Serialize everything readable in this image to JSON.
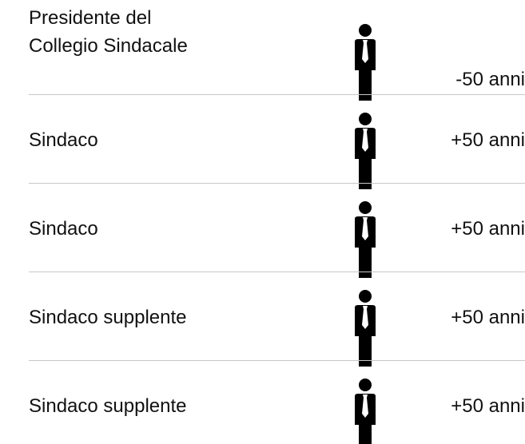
{
  "rows": [
    {
      "role": "Presidente del\nCollegio Sindacale",
      "age": "-50 anni"
    },
    {
      "role": "Sindaco",
      "age": "+50 anni"
    },
    {
      "role": "Sindaco",
      "age": "+50 anni"
    },
    {
      "role": "Sindaco supplente",
      "age": "+50 anni"
    },
    {
      "role": "Sindaco supplente",
      "age": "+50 anni"
    }
  ]
}
